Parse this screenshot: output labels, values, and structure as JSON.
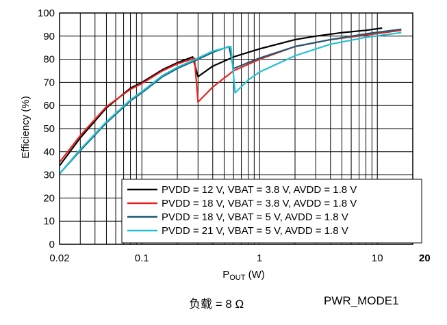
{
  "chart_data": {
    "type": "line",
    "xscale": "log",
    "xlim": [
      0.02,
      20
    ],
    "ylim": [
      0,
      100
    ],
    "xticks": [
      {
        "value": 0.02,
        "label": "0.02"
      },
      {
        "value": 0.1,
        "label": "0.1"
      },
      {
        "value": 1,
        "label": "1"
      },
      {
        "value": 10,
        "label": "10"
      },
      {
        "value": 20,
        "label": "20"
      }
    ],
    "yticks": [
      0,
      10,
      20,
      30,
      40,
      50,
      60,
      70,
      80,
      90,
      100
    ],
    "ylabel": "Efficiency (%)",
    "xlabel_main": "P",
    "xlabel_sub": "OUT",
    "xlabel_unit": " (W)",
    "grid": true,
    "legend_position": "bottom-right",
    "series": [
      {
        "name": "PVDD = 12 V, VBAT = 3.8 V, AVDD = 1.8 V",
        "color": "#000000",
        "points": [
          [
            0.02,
            34
          ],
          [
            0.03,
            46
          ],
          [
            0.05,
            59
          ],
          [
            0.08,
            67.5
          ],
          [
            0.1,
            70
          ],
          [
            0.15,
            75.5
          ],
          [
            0.2,
            78.5
          ],
          [
            0.27,
            81
          ],
          [
            0.3,
            72.5
          ],
          [
            0.4,
            77
          ],
          [
            0.6,
            81
          ],
          [
            1,
            84.5
          ],
          [
            2,
            88.5
          ],
          [
            3,
            90
          ],
          [
            5,
            91.5
          ],
          [
            8,
            92.5
          ],
          [
            11,
            93.5
          ]
        ]
      },
      {
        "name": "PVDD = 18 V, VBAT = 3.8 V, AVDD = 1.8 V",
        "color": "#e8221f",
        "points": [
          [
            0.02,
            35.5
          ],
          [
            0.03,
            47
          ],
          [
            0.05,
            59.5
          ],
          [
            0.08,
            67
          ],
          [
            0.1,
            69.5
          ],
          [
            0.15,
            75
          ],
          [
            0.2,
            78
          ],
          [
            0.28,
            80.5
          ],
          [
            0.3,
            61.5
          ],
          [
            0.4,
            68
          ],
          [
            0.6,
            75
          ],
          [
            1,
            80
          ],
          [
            2,
            85.5
          ],
          [
            4,
            88.5
          ],
          [
            8,
            90.5
          ],
          [
            16,
            92.5
          ]
        ]
      },
      {
        "name": "PVDD = 18 V, VBAT = 5 V, AVDD = 1.8 V",
        "color": "#1f5a73",
        "points": [
          [
            0.02,
            30.5
          ],
          [
            0.03,
            40.5
          ],
          [
            0.05,
            52.5
          ],
          [
            0.08,
            62
          ],
          [
            0.1,
            65.5
          ],
          [
            0.15,
            72.5
          ],
          [
            0.2,
            76
          ],
          [
            0.3,
            80
          ],
          [
            0.4,
            83
          ],
          [
            0.55,
            85.5
          ],
          [
            0.6,
            76
          ],
          [
            1,
            80.5
          ],
          [
            2,
            85.5
          ],
          [
            4,
            88.5
          ],
          [
            8,
            91
          ],
          [
            16,
            93
          ]
        ]
      },
      {
        "name": "PVDD = 21 V, VBAT = 5 V, AVDD = 1.8 V",
        "color": "#22c1d3",
        "points": [
          [
            0.02,
            30.5
          ],
          [
            0.03,
            41
          ],
          [
            0.05,
            53
          ],
          [
            0.08,
            62.5
          ],
          [
            0.1,
            66
          ],
          [
            0.15,
            73
          ],
          [
            0.2,
            76.5
          ],
          [
            0.3,
            80.5
          ],
          [
            0.4,
            83.5
          ],
          [
            0.57,
            85.5
          ],
          [
            0.62,
            65.5
          ],
          [
            0.8,
            71
          ],
          [
            1,
            74.5
          ],
          [
            2,
            81.5
          ],
          [
            4,
            86.5
          ],
          [
            8,
            89.5
          ],
          [
            16,
            91.5
          ]
        ]
      }
    ]
  },
  "footer": {
    "load_label": "负载 = 8 Ω",
    "mode_label": "PWR_MODE1"
  }
}
